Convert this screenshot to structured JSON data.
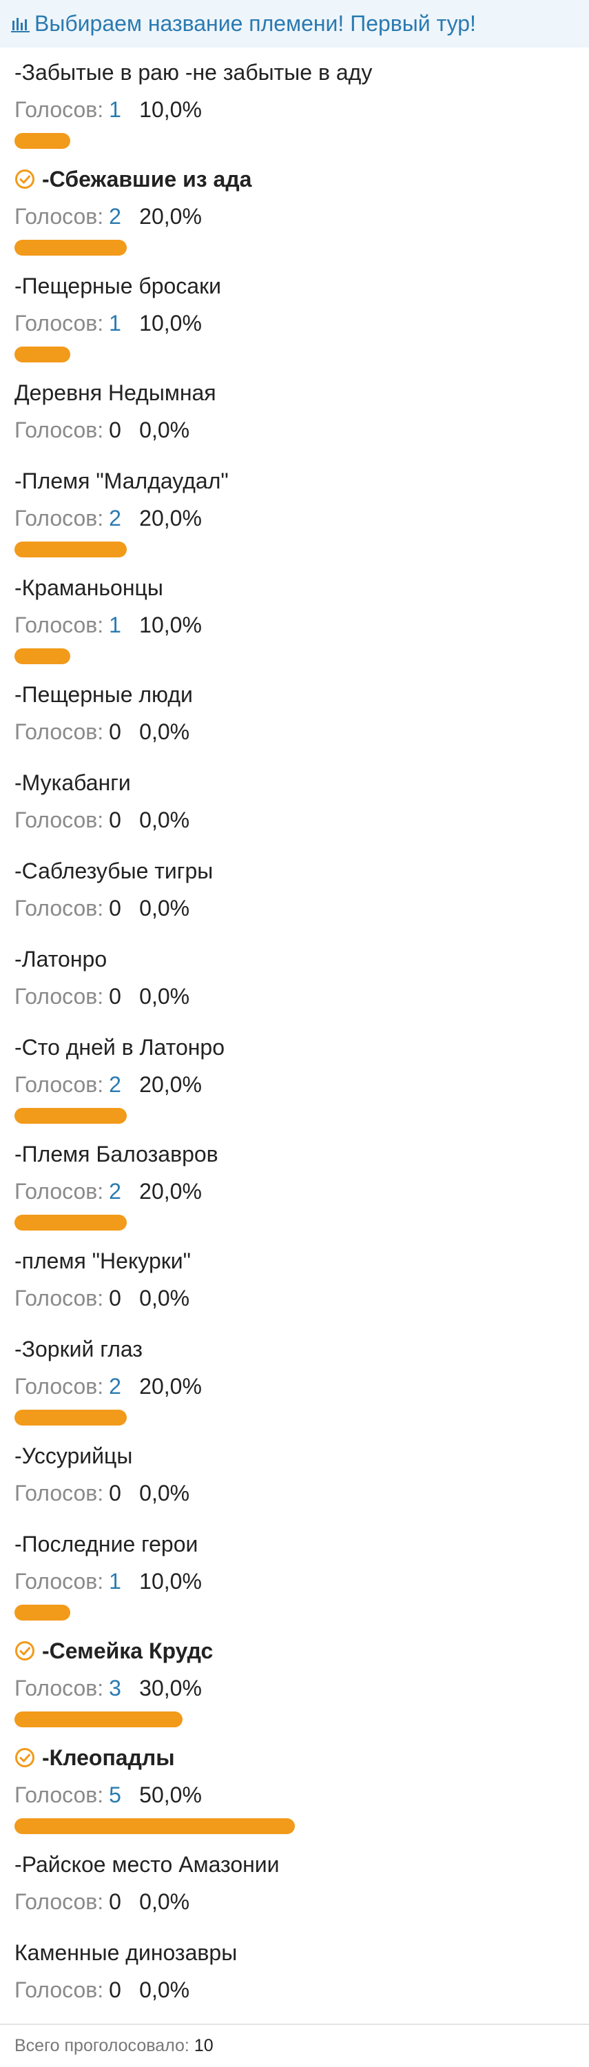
{
  "header": {
    "title": "Выбираем название племени! Первый тур!"
  },
  "votes_label": "Голосов:",
  "options": [
    {
      "label": "-Забытые в раю -не забытые в аду",
      "votes": 1,
      "percent": {
        "value": 10,
        "label": "10,0%"
      },
      "checked": false
    },
    {
      "label": "-Сбежавшие из ада",
      "votes": 2,
      "percent": {
        "value": 20,
        "label": "20,0%"
      },
      "checked": true
    },
    {
      "label": "-Пещерные бросаки",
      "votes": 1,
      "percent": {
        "value": 10,
        "label": "10,0%"
      },
      "checked": false
    },
    {
      "label": "Деревня Недымная",
      "votes": 0,
      "percent": {
        "value": 0,
        "label": "0,0%"
      },
      "checked": false
    },
    {
      "label": "-Племя \"Малдаудал\"",
      "votes": 2,
      "percent": {
        "value": 20,
        "label": "20,0%"
      },
      "checked": false
    },
    {
      "label": "-Краманьонцы",
      "votes": 1,
      "percent": {
        "value": 10,
        "label": "10,0%"
      },
      "checked": false
    },
    {
      "label": "-Пещерные люди",
      "votes": 0,
      "percent": {
        "value": 0,
        "label": "0,0%"
      },
      "checked": false
    },
    {
      "label": "-Мукабанги",
      "votes": 0,
      "percent": {
        "value": 0,
        "label": "0,0%"
      },
      "checked": false
    },
    {
      "label": "-Саблезубые тигры",
      "votes": 0,
      "percent": {
        "value": 0,
        "label": "0,0%"
      },
      "checked": false
    },
    {
      "label": "-Латонро",
      "votes": 0,
      "percent": {
        "value": 0,
        "label": "0,0%"
      },
      "checked": false
    },
    {
      "label": "-Сто дней в Латонро",
      "votes": 2,
      "percent": {
        "value": 20,
        "label": "20,0%"
      },
      "checked": false
    },
    {
      "label": "-Племя Балозавров",
      "votes": 2,
      "percent": {
        "value": 20,
        "label": "20,0%"
      },
      "checked": false
    },
    {
      "label": "-племя \"Некурки\"",
      "votes": 0,
      "percent": {
        "value": 0,
        "label": "0,0%"
      },
      "checked": false
    },
    {
      "label": "-Зоркий глаз",
      "votes": 2,
      "percent": {
        "value": 20,
        "label": "20,0%"
      },
      "checked": false
    },
    {
      "label": "-Уссурийцы",
      "votes": 0,
      "percent": {
        "value": 0,
        "label": "0,0%"
      },
      "checked": false
    },
    {
      "label": "-Последние герои",
      "votes": 1,
      "percent": {
        "value": 10,
        "label": "10,0%"
      },
      "checked": false
    },
    {
      "label": "-Семейка Крудс",
      "votes": 3,
      "percent": {
        "value": 30,
        "label": "30,0%"
      },
      "checked": true
    },
    {
      "label": "-Клеопадлы",
      "votes": 5,
      "percent": {
        "value": 50,
        "label": "50,0%"
      },
      "checked": true
    },
    {
      "label": "-Райское место Амазонии",
      "votes": 0,
      "percent": {
        "value": 0,
        "label": "0,0%"
      },
      "checked": false
    },
    {
      "label": "Каменные динозавры",
      "votes": 0,
      "percent": {
        "value": 0,
        "label": "0,0%"
      },
      "checked": false
    }
  ],
  "footer": {
    "label": "Всего проголосовало:",
    "total": 10
  }
}
